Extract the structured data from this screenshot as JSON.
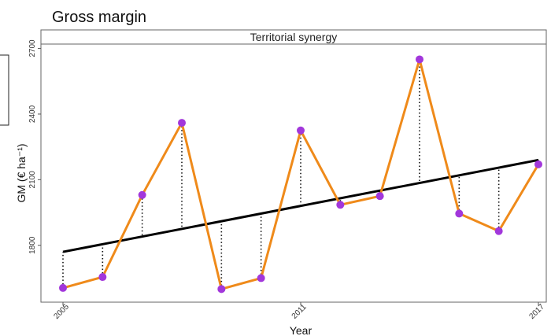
{
  "chart_data": {
    "type": "line",
    "title": "Gross margin",
    "panel_label": "Territorial synergy",
    "xlabel": "Year",
    "ylabel": "GM (€ ha⁻¹)",
    "xlim": [
      2005,
      2017
    ],
    "ylim": [
      1540,
      2720
    ],
    "x_ticks": [
      2005,
      2011,
      2017
    ],
    "y_ticks": [
      1800,
      2100,
      2400,
      2700
    ],
    "grid": false,
    "series": [
      {
        "x": [
          2005,
          2006,
          2007,
          2008,
          2009,
          2010,
          2011,
          2012,
          2013,
          2014,
          2015,
          2016,
          2017
        ],
        "values": [
          1605,
          1655,
          2030,
          2360,
          1600,
          1650,
          2325,
          1985,
          2025,
          2650,
          1945,
          1865,
          2170
        ],
        "line_color": "#ef8a1a",
        "marker_color": "#a237db"
      }
    ],
    "trend": {
      "x": [
        2005,
        2017
      ],
      "values": [
        1770,
        2190
      ],
      "color": "#000000"
    }
  }
}
